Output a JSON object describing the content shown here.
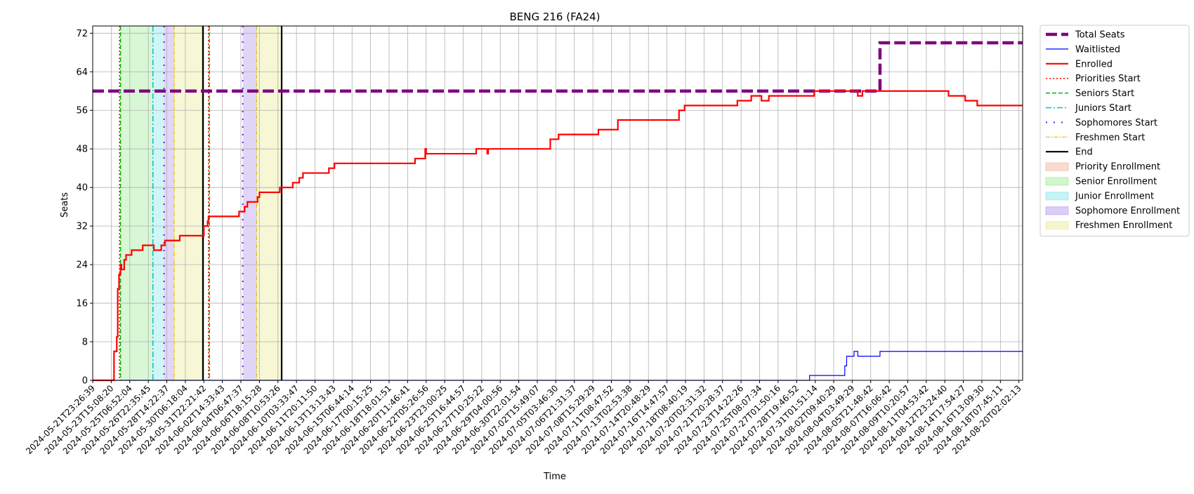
{
  "chart_data": {
    "type": "line",
    "title": "BENG 216 (FA24)",
    "xlabel": "Time",
    "ylabel": "Seats",
    "ylim": [
      0,
      73.5
    ],
    "yticks": [
      0,
      8,
      16,
      24,
      32,
      40,
      48,
      56,
      64,
      72
    ],
    "grid": true,
    "legend_position": "outside-top-right",
    "x_tick_labels": [
      "2024-05-21T23:26:39",
      "2024-05-23T15:08:20",
      "2024-05-25T06:52:04",
      "2024-05-26T22:35:45",
      "2024-05-28T14:22:37",
      "2024-05-30T06:18:04",
      "2024-05-31T22:21:42",
      "2024-06-02T14:33:43",
      "2024-06-04T06:47:37",
      "2024-06-06T18:15:28",
      "2024-06-08T10:53:26",
      "2024-06-10T03:33:47",
      "2024-06-11T20:11:50",
      "2024-06-13T13:13:43",
      "2024-06-15T06:44:14",
      "2024-06-17T00:15:25",
      "2024-06-18T18:01:51",
      "2024-06-20T11:46:41",
      "2024-06-22T05:26:56",
      "2024-06-23T23:00:25",
      "2024-06-25T16:44:57",
      "2024-06-27T10:25:22",
      "2024-06-29T04:00:56",
      "2024-06-30T22:01:54",
      "2024-07-02T15:49:07",
      "2024-07-05T03:46:30",
      "2024-07-06T21:31:37",
      "2024-07-08T15:29:29",
      "2024-07-11T08:47:52",
      "2024-07-13T02:53:38",
      "2024-07-14T20:48:29",
      "2024-07-16T14:47:57",
      "2024-07-18T08:40:19",
      "2024-07-20T02:31:32",
      "2024-07-21T20:28:37",
      "2024-07-23T14:22:26",
      "2024-07-25T08:07:34",
      "2024-07-27T01:50:16",
      "2024-07-28T19:46:52",
      "2024-07-31T01:51:14",
      "2024-08-02T09:40:29",
      "2024-08-04T03:49:29",
      "2024-08-05T21:48:42",
      "2024-08-07T16:06:42",
      "2024-08-09T10:20:57",
      "2024-08-11T04:53:42",
      "2024-08-12T23:24:40",
      "2024-08-14T17:54:27",
      "2024-08-16T13:09:30",
      "2024-08-18T07:45:11",
      "2024-08-20T02:02:13"
    ],
    "x_tick_count": 51,
    "x_range": [
      0,
      50.2
    ],
    "series": [
      {
        "name": "Total Seats",
        "color": "#800080",
        "style": "dashed-thick",
        "points": [
          [
            0,
            60
          ],
          [
            42.5,
            60
          ],
          [
            42.5,
            70
          ],
          [
            50.2,
            70
          ]
        ]
      },
      {
        "name": "Waitlisted",
        "color": "#0000ff",
        "style": "solid-thin",
        "points": [
          [
            0,
            0
          ],
          [
            38.7,
            0
          ],
          [
            38.7,
            1
          ],
          [
            40.6,
            1
          ],
          [
            40.6,
            3
          ],
          [
            40.7,
            3
          ],
          [
            40.7,
            5
          ],
          [
            41.1,
            5
          ],
          [
            41.1,
            6
          ],
          [
            41.3,
            6
          ],
          [
            41.3,
            5
          ],
          [
            42.5,
            5
          ],
          [
            42.5,
            6
          ],
          [
            50.2,
            6
          ]
        ]
      },
      {
        "name": "Enrolled",
        "color": "#ff0000",
        "style": "solid",
        "points": [
          [
            0,
            0
          ],
          [
            1.15,
            0
          ],
          [
            1.15,
            6
          ],
          [
            1.3,
            6
          ],
          [
            1.3,
            9
          ],
          [
            1.35,
            9
          ],
          [
            1.35,
            19
          ],
          [
            1.42,
            19
          ],
          [
            1.42,
            22
          ],
          [
            1.5,
            22
          ],
          [
            1.5,
            24
          ],
          [
            1.55,
            24
          ],
          [
            1.55,
            23
          ],
          [
            1.7,
            23
          ],
          [
            1.7,
            25
          ],
          [
            1.8,
            25
          ],
          [
            1.8,
            26
          ],
          [
            2.1,
            26
          ],
          [
            2.1,
            27
          ],
          [
            2.7,
            27
          ],
          [
            2.7,
            28
          ],
          [
            3.3,
            28
          ],
          [
            3.3,
            27
          ],
          [
            3.7,
            27
          ],
          [
            3.7,
            28
          ],
          [
            3.9,
            28
          ],
          [
            3.9,
            29
          ],
          [
            4.7,
            29
          ],
          [
            4.7,
            30
          ],
          [
            6.0,
            30
          ],
          [
            6.0,
            32
          ],
          [
            6.2,
            32
          ],
          [
            6.2,
            33
          ],
          [
            6.25,
            33
          ],
          [
            6.25,
            34
          ],
          [
            7.9,
            34
          ],
          [
            7.9,
            35
          ],
          [
            8.2,
            35
          ],
          [
            8.2,
            36
          ],
          [
            8.35,
            36
          ],
          [
            8.35,
            37
          ],
          [
            8.9,
            37
          ],
          [
            8.9,
            38
          ],
          [
            9.0,
            38
          ],
          [
            9.0,
            39
          ],
          [
            10.1,
            39
          ],
          [
            10.1,
            40
          ],
          [
            10.8,
            40
          ],
          [
            10.8,
            41
          ],
          [
            11.15,
            41
          ],
          [
            11.15,
            42
          ],
          [
            11.35,
            42
          ],
          [
            11.35,
            43
          ],
          [
            12.75,
            43
          ],
          [
            12.75,
            44
          ],
          [
            13.05,
            44
          ],
          [
            13.05,
            45
          ],
          [
            17.4,
            45
          ],
          [
            17.4,
            46
          ],
          [
            17.95,
            46
          ],
          [
            17.95,
            48
          ],
          [
            18.0,
            48
          ],
          [
            18.0,
            47
          ],
          [
            20.7,
            47
          ],
          [
            20.7,
            48
          ],
          [
            21.3,
            48
          ],
          [
            21.3,
            47
          ],
          [
            21.35,
            47
          ],
          [
            21.35,
            48
          ],
          [
            24.7,
            48
          ],
          [
            24.7,
            50
          ],
          [
            25.15,
            50
          ],
          [
            25.15,
            51
          ],
          [
            27.3,
            51
          ],
          [
            27.3,
            52
          ],
          [
            28.35,
            52
          ],
          [
            28.35,
            54
          ],
          [
            31.65,
            54
          ],
          [
            31.65,
            56
          ],
          [
            31.95,
            56
          ],
          [
            31.95,
            57
          ],
          [
            34.8,
            57
          ],
          [
            34.8,
            58
          ],
          [
            35.55,
            58
          ],
          [
            35.55,
            59
          ],
          [
            36.1,
            59
          ],
          [
            36.1,
            58
          ],
          [
            36.5,
            58
          ],
          [
            36.5,
            59
          ],
          [
            38.95,
            59
          ],
          [
            38.95,
            60
          ],
          [
            41.3,
            60
          ],
          [
            41.3,
            59
          ],
          [
            41.55,
            59
          ],
          [
            41.55,
            60
          ],
          [
            46.2,
            60
          ],
          [
            46.2,
            59
          ],
          [
            47.1,
            59
          ],
          [
            47.1,
            58
          ],
          [
            47.75,
            58
          ],
          [
            47.75,
            57
          ],
          [
            50.2,
            57
          ]
        ]
      }
    ],
    "vertical_lines": [
      {
        "name": "Priorities Start",
        "color": "#ff0000",
        "style": "dotted",
        "x": [
          1.45,
          6.25
        ]
      },
      {
        "name": "Seniors Start",
        "color": "#00bb00",
        "style": "dashed",
        "x": [
          1.5,
          6.3
        ]
      },
      {
        "name": "Juniors Start",
        "color": "#00c0d0",
        "style": "dashdot",
        "x": [
          3.25
        ]
      },
      {
        "name": "Sophomores Start",
        "color": "#6020e0",
        "style": "sparse-dotted",
        "x": [
          3.85,
          8.1
        ]
      },
      {
        "name": "Freshmen Start",
        "color": "#e0c000",
        "style": "dashdot-thin",
        "x": [
          4.4,
          8.85
        ]
      },
      {
        "name": "End",
        "color": "#000000",
        "style": "solid",
        "x": [
          5.95,
          10.2
        ]
      }
    ],
    "shaded_regions": [
      {
        "name": "Priority Enrollment",
        "color": "#f4c7b4",
        "ranges": []
      },
      {
        "name": "Senior Enrollment",
        "color": "#b8f0b0",
        "ranges": [
          [
            1.5,
            3.25
          ]
        ]
      },
      {
        "name": "Junior Enrollment",
        "color": "#a8ecf0",
        "ranges": [
          [
            3.25,
            3.85
          ]
        ]
      },
      {
        "name": "Sophomore Enrollment",
        "color": "#c8b4f0",
        "ranges": [
          [
            3.85,
            4.4
          ],
          [
            8.1,
            8.85
          ]
        ]
      },
      {
        "name": "Freshmen Enrollment",
        "color": "#f0f0b4",
        "ranges": [
          [
            4.4,
            5.95
          ],
          [
            8.85,
            10.2
          ]
        ]
      }
    ],
    "legend": [
      {
        "label": "Total Seats",
        "kind": "line",
        "color": "#800080",
        "style": "dashed-thick"
      },
      {
        "label": "Waitlisted",
        "kind": "line",
        "color": "#0000ff",
        "style": "solid-thin"
      },
      {
        "label": "Enrolled",
        "kind": "line",
        "color": "#ff0000",
        "style": "solid"
      },
      {
        "label": "Priorities Start",
        "kind": "line",
        "color": "#ff0000",
        "style": "dotted"
      },
      {
        "label": "Seniors Start",
        "kind": "line",
        "color": "#00bb00",
        "style": "dashed"
      },
      {
        "label": "Juniors Start",
        "kind": "line",
        "color": "#00c0d0",
        "style": "dashdot"
      },
      {
        "label": "Sophomores Start",
        "kind": "line",
        "color": "#6020e0",
        "style": "sparse-dotted"
      },
      {
        "label": "Freshmen Start",
        "kind": "line",
        "color": "#e0c000",
        "style": "dashdot-thin"
      },
      {
        "label": "End",
        "kind": "line",
        "color": "#000000",
        "style": "solid"
      },
      {
        "label": "Priority Enrollment",
        "kind": "patch",
        "color": "#f4c7b4"
      },
      {
        "label": "Senior Enrollment",
        "kind": "patch",
        "color": "#b8f0b0"
      },
      {
        "label": "Junior Enrollment",
        "kind": "patch",
        "color": "#a8ecf0"
      },
      {
        "label": "Sophomore Enrollment",
        "kind": "patch",
        "color": "#c8b4f0"
      },
      {
        "label": "Freshmen Enrollment",
        "kind": "patch",
        "color": "#f0f0b4"
      }
    ]
  }
}
